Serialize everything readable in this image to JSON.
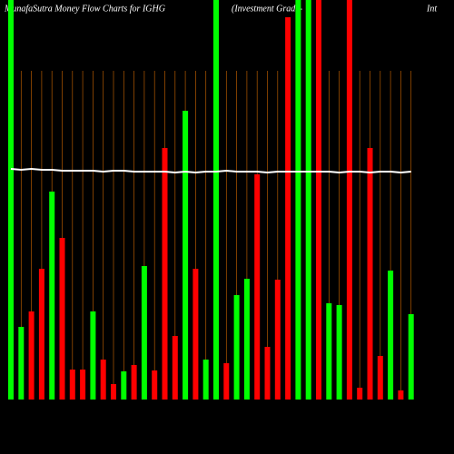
{
  "chart_data": {
    "type": "bar",
    "title": "MunafaSutra  Money Flow  Charts for IGHG",
    "subtitle": "(Investment Grade-",
    "subtitle_end": "Int",
    "categories": [
      null,
      null,
      null,
      null,
      null,
      null,
      null,
      null,
      null,
      null,
      null,
      null,
      null,
      null,
      null,
      null,
      null,
      null,
      null,
      null,
      null,
      null,
      null,
      null,
      null,
      null,
      null,
      null,
      null,
      null,
      null,
      null,
      null,
      null,
      null,
      null,
      null,
      null,
      null,
      null
    ],
    "ylim": [
      0,
      440
    ],
    "series": [
      {
        "values": [
          440,
          80,
          97,
          144,
          229,
          178,
          33,
          33,
          97,
          44,
          17,
          31,
          38,
          147,
          32,
          277,
          70,
          318,
          144,
          44,
          440,
          40,
          115,
          133,
          248,
          58,
          132,
          421,
          440,
          440,
          440,
          106,
          104,
          440,
          13,
          277,
          48,
          142,
          10,
          94
        ],
        "colors": [
          "#00ff00",
          "#00ff00",
          "#ff0000",
          "#ff0000",
          "#00ff00",
          "#ff0000",
          "#ff0000",
          "#ff0000",
          "#00ff00",
          "#ff0000",
          "#ff0000",
          "#00ff00",
          "#ff0000",
          "#00ff00",
          "#ff0000",
          "#ff0000",
          "#ff0000",
          "#00ff00",
          "#ff0000",
          "#00ff00",
          "#00ff00",
          "#ff0000",
          "#00ff00",
          "#00ff00",
          "#ff0000",
          "#ff0000",
          "#ff0000",
          "#ff0000",
          "#00ff00",
          "#00ff00",
          "#ff0000",
          "#00ff00",
          "#00ff00",
          "#ff0000",
          "#ff0000",
          "#ff0000",
          "#ff0000",
          "#00ff00",
          "#ff0000",
          "#00ff00"
        ]
      },
      {
        "type": "line",
        "color": "#ffffff",
        "values": [
          254,
          253,
          254,
          253,
          253,
          252,
          252,
          252,
          252,
          251,
          252,
          252,
          251,
          251,
          251,
          251,
          250,
          251,
          250,
          251,
          251,
          252,
          251,
          251,
          251,
          250,
          251,
          251,
          251,
          251,
          251,
          251,
          250,
          251,
          251,
          250,
          251,
          251,
          250,
          251
        ]
      }
    ]
  }
}
